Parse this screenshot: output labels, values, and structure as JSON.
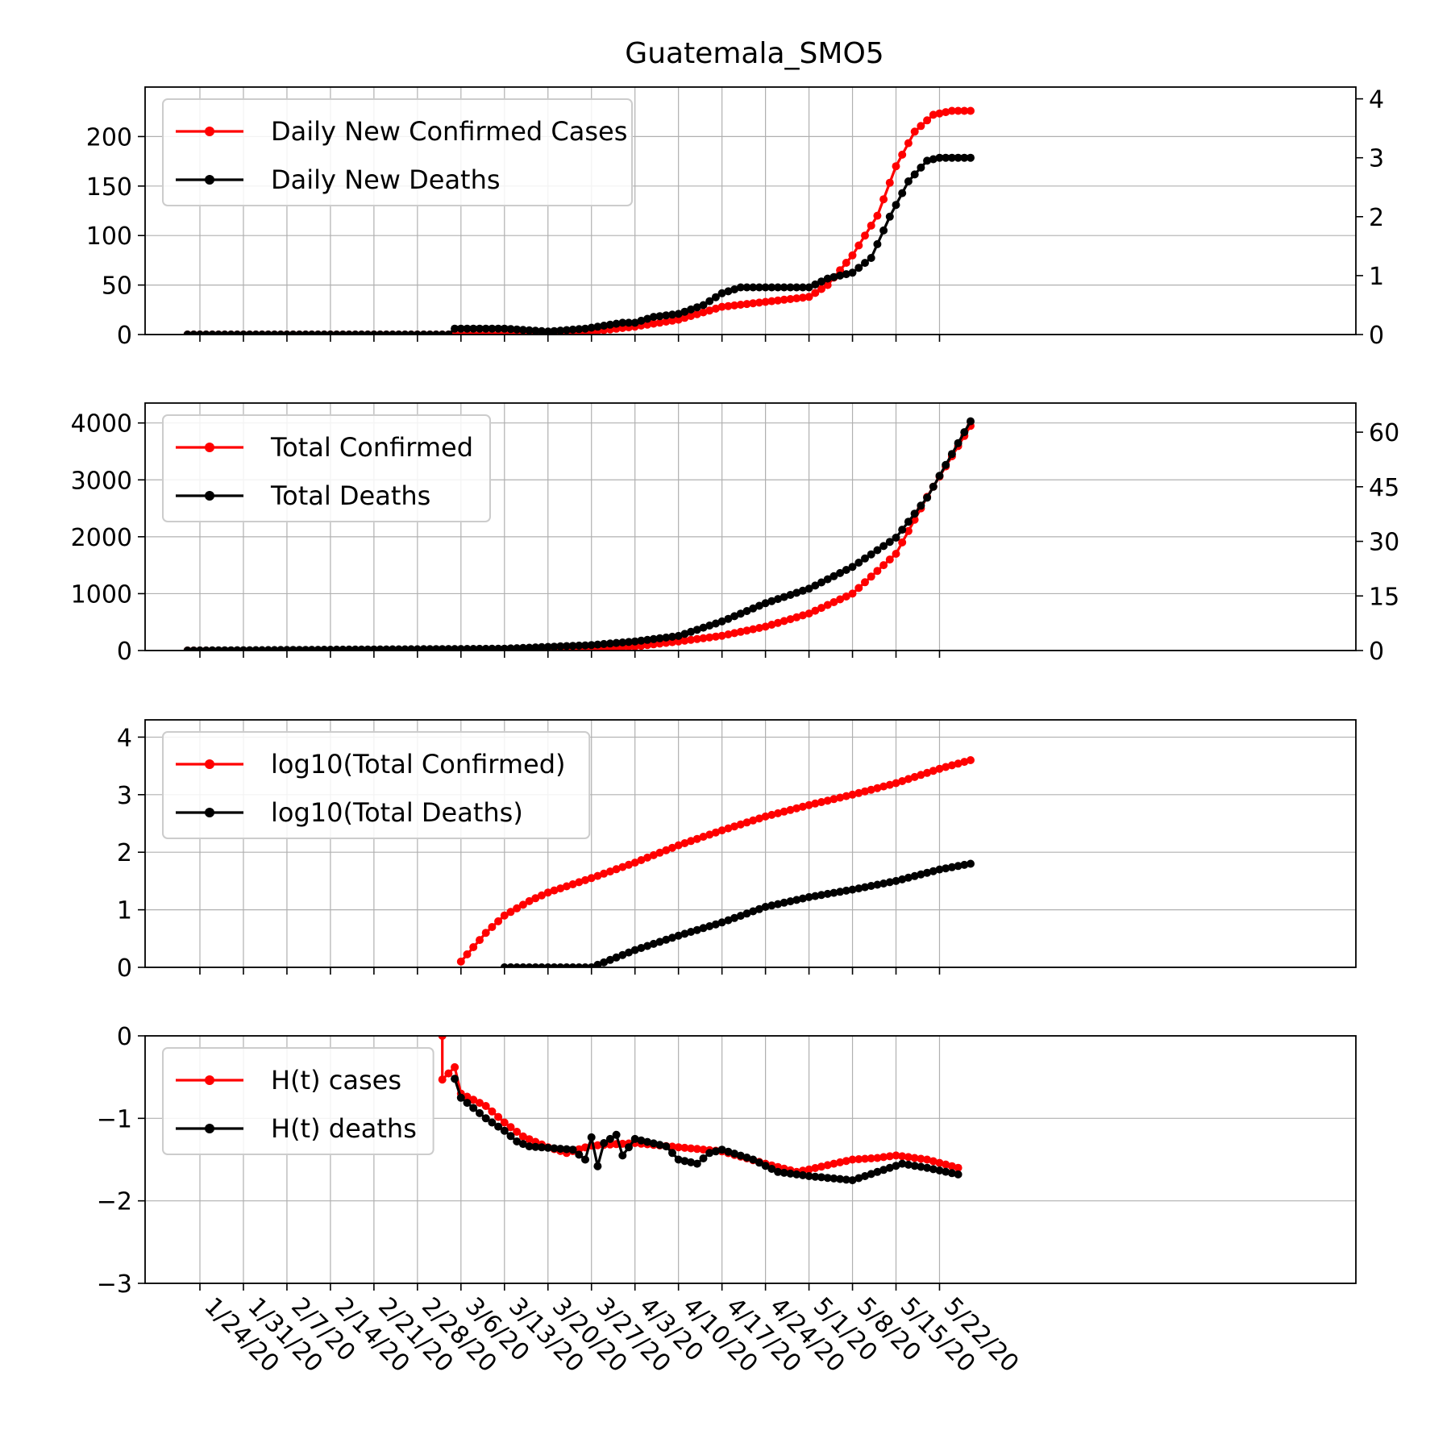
{
  "title": "Guatemala_SMO5",
  "x_ticks": [
    "1/24/20",
    "1/31/20",
    "2/7/20",
    "2/14/20",
    "2/21/20",
    "2/28/20",
    "3/6/20",
    "3/13/20",
    "3/20/20",
    "3/27/20",
    "4/3/20",
    "4/10/20",
    "4/17/20",
    "4/24/20",
    "5/1/20",
    "5/8/20",
    "5/15/20",
    "5/22/20"
  ],
  "chart_data": [
    {
      "type": "line",
      "panel": "daily",
      "x": {
        "start": "1/22/20",
        "end": "5/27/20",
        "unit": "day"
      },
      "left_axis": {
        "ylim": [
          0,
          250
        ],
        "ticks": [
          0,
          50,
          100,
          150,
          200
        ]
      },
      "right_axis": {
        "ylim": [
          0,
          4.2
        ],
        "ticks": [
          0,
          1,
          2,
          3,
          4
        ]
      },
      "grid": true,
      "legend_position": "top-left",
      "series": [
        {
          "name": "Daily New Confirmed Cases",
          "color": "#ff0000",
          "axis": "left",
          "points": [
            [
              "1/22/20",
              0
            ],
            [
              "3/13/20",
              0
            ],
            [
              "3/20/20",
              2
            ],
            [
              "3/27/20",
              3
            ],
            [
              "4/3/20",
              8
            ],
            [
              "4/10/20",
              15
            ],
            [
              "4/17/20",
              28
            ],
            [
              "4/24/20",
              33
            ],
            [
              "5/1/20",
              38
            ],
            [
              "5/4/20",
              50
            ],
            [
              "5/8/20",
              80
            ],
            [
              "5/12/20",
              120
            ],
            [
              "5/15/20",
              170
            ],
            [
              "5/18/20",
              205
            ],
            [
              "5/21/20",
              222
            ],
            [
              "5/24/20",
              226
            ],
            [
              "5/27/20",
              226
            ]
          ]
        },
        {
          "name": "Daily New Deaths",
          "color": "#000000",
          "axis": "right",
          "points": [
            [
              "1/22/20",
              0
            ],
            [
              "3/4/20",
              0
            ],
            [
              "3/5/20",
              0.1
            ],
            [
              "3/13/20",
              0.1
            ],
            [
              "3/20/20",
              0.05
            ],
            [
              "3/26/20",
              0.1
            ],
            [
              "4/1/20",
              0.2
            ],
            [
              "4/3/20",
              0.2
            ],
            [
              "4/6/20",
              0.3
            ],
            [
              "4/10/20",
              0.35
            ],
            [
              "4/14/20",
              0.5
            ],
            [
              "4/17/20",
              0.7
            ],
            [
              "4/20/20",
              0.8
            ],
            [
              "4/24/20",
              0.8
            ],
            [
              "5/1/20",
              0.8
            ],
            [
              "5/4/20",
              0.95
            ],
            [
              "5/8/20",
              1.05
            ],
            [
              "5/11/20",
              1.3
            ],
            [
              "5/14/20",
              2.0
            ],
            [
              "5/17/20",
              2.6
            ],
            [
              "5/20/20",
              2.95
            ],
            [
              "5/22/20",
              3.0
            ],
            [
              "5/27/20",
              3.0
            ]
          ]
        }
      ]
    },
    {
      "type": "line",
      "panel": "total",
      "x": {
        "start": "1/22/20",
        "end": "5/27/20",
        "unit": "day"
      },
      "left_axis": {
        "ylim": [
          0,
          4350
        ],
        "ticks": [
          0,
          1000,
          2000,
          3000,
          4000
        ]
      },
      "right_axis": {
        "ylim": [
          0,
          68
        ],
        "ticks": [
          0,
          15,
          30,
          45,
          60
        ]
      },
      "grid": true,
      "legend_position": "top-left",
      "series": [
        {
          "name": "Total Confirmed",
          "color": "#ff0000",
          "axis": "left",
          "points": [
            [
              "1/22/20",
              0
            ],
            [
              "3/13/20",
              0
            ],
            [
              "3/20/20",
              20
            ],
            [
              "3/27/20",
              40
            ],
            [
              "4/3/20",
              70
            ],
            [
              "4/10/20",
              160
            ],
            [
              "4/17/20",
              260
            ],
            [
              "4/24/20",
              420
            ],
            [
              "5/1/20",
              650
            ],
            [
              "5/8/20",
              1000
            ],
            [
              "5/15/20",
              1700
            ],
            [
              "5/20/20",
              2700
            ],
            [
              "5/27/20",
              3950
            ]
          ]
        },
        {
          "name": "Total Deaths",
          "color": "#000000",
          "axis": "right",
          "points": [
            [
              "1/22/20",
              0
            ],
            [
              "3/13/20",
              0.5
            ],
            [
              "3/20/20",
              1
            ],
            [
              "3/27/20",
              1.5
            ],
            [
              "4/3/20",
              2.5
            ],
            [
              "4/10/20",
              4
            ],
            [
              "4/17/20",
              8
            ],
            [
              "4/24/20",
              13
            ],
            [
              "5/1/20",
              17
            ],
            [
              "5/8/20",
              23
            ],
            [
              "5/15/20",
              31
            ],
            [
              "5/20/20",
              42
            ],
            [
              "5/27/20",
              63
            ]
          ]
        }
      ]
    },
    {
      "type": "line",
      "panel": "log",
      "x": {
        "start": "1/22/20",
        "end": "5/27/20",
        "unit": "day"
      },
      "left_axis": {
        "ylim": [
          0,
          4.3
        ],
        "ticks": [
          0,
          1,
          2,
          3,
          4
        ]
      },
      "grid": true,
      "legend_position": "top-left",
      "series": [
        {
          "name": "log10(Total Confirmed)",
          "color": "#ff0000",
          "axis": "left",
          "points": [
            [
              "3/6/20",
              0.1
            ],
            [
              "3/10/20",
              0.6
            ],
            [
              "3/13/20",
              0.9
            ],
            [
              "3/17/20",
              1.15
            ],
            [
              "3/20/20",
              1.3
            ],
            [
              "3/27/20",
              1.55
            ],
            [
              "4/3/20",
              1.82
            ],
            [
              "4/10/20",
              2.12
            ],
            [
              "4/17/20",
              2.38
            ],
            [
              "4/24/20",
              2.62
            ],
            [
              "5/1/20",
              2.82
            ],
            [
              "5/8/20",
              3.0
            ],
            [
              "5/15/20",
              3.2
            ],
            [
              "5/22/20",
              3.45
            ],
            [
              "5/27/20",
              3.6
            ]
          ]
        },
        {
          "name": "log10(Total Deaths)",
          "color": "#000000",
          "axis": "left",
          "points": [
            [
              "3/13/20",
              0
            ],
            [
              "3/27/20",
              0
            ],
            [
              "4/3/20",
              0.3
            ],
            [
              "4/10/20",
              0.55
            ],
            [
              "4/17/20",
              0.78
            ],
            [
              "4/24/20",
              1.05
            ],
            [
              "5/1/20",
              1.22
            ],
            [
              "5/8/20",
              1.35
            ],
            [
              "5/15/20",
              1.5
            ],
            [
              "5/22/20",
              1.7
            ],
            [
              "5/27/20",
              1.8
            ]
          ]
        }
      ]
    },
    {
      "type": "line",
      "panel": "H",
      "x": {
        "start": "1/22/20",
        "end": "5/27/20",
        "unit": "day"
      },
      "left_axis": {
        "ylim": [
          -3,
          0
        ],
        "ticks": [
          -3,
          -2,
          -1,
          0
        ]
      },
      "grid": true,
      "legend_position": "top-left",
      "series": [
        {
          "name": "H(t) cases",
          "color": "#ff0000",
          "axis": "left",
          "points": [
            [
              "3/3/20",
              0
            ],
            [
              "3/3/20",
              -0.53
            ],
            [
              "3/5/20",
              -0.38
            ],
            [
              "3/6/20",
              -0.7
            ],
            [
              "3/10/20",
              -0.85
            ],
            [
              "3/13/20",
              -1.05
            ],
            [
              "3/16/20",
              -1.22
            ],
            [
              "3/20/20",
              -1.35
            ],
            [
              "3/23/20",
              -1.42
            ],
            [
              "3/27/20",
              -1.33
            ],
            [
              "4/3/20",
              -1.3
            ],
            [
              "4/10/20",
              -1.35
            ],
            [
              "4/17/20",
              -1.4
            ],
            [
              "4/24/20",
              -1.55
            ],
            [
              "4/29/20",
              -1.65
            ],
            [
              "5/1/20",
              -1.62
            ],
            [
              "5/5/20",
              -1.55
            ],
            [
              "5/8/20",
              -1.5
            ],
            [
              "5/12/20",
              -1.48
            ],
            [
              "5/15/20",
              -1.45
            ],
            [
              "5/20/20",
              -1.5
            ],
            [
              "5/25/20",
              -1.6
            ]
          ]
        },
        {
          "name": "H(t) deaths",
          "color": "#000000",
          "axis": "left",
          "points": [
            [
              "3/5/20",
              -0.52
            ],
            [
              "3/6/20",
              -0.75
            ],
            [
              "3/10/20",
              -1.0
            ],
            [
              "3/13/20",
              -1.15
            ],
            [
              "3/15/20",
              -1.28
            ],
            [
              "3/17/20",
              -1.34
            ],
            [
              "3/24/20",
              -1.38
            ],
            [
              "3/26/20",
              -1.5
            ],
            [
              "3/27/20",
              -1.23
            ],
            [
              "3/28/20",
              -1.58
            ],
            [
              "3/29/20",
              -1.3
            ],
            [
              "3/31/20",
              -1.2
            ],
            [
              "4/1/20",
              -1.45
            ],
            [
              "4/3/20",
              -1.25
            ],
            [
              "4/8/20",
              -1.34
            ],
            [
              "4/10/20",
              -1.5
            ],
            [
              "4/13/20",
              -1.55
            ],
            [
              "4/15/20",
              -1.42
            ],
            [
              "4/17/20",
              -1.38
            ],
            [
              "4/22/20",
              -1.5
            ],
            [
              "4/26/20",
              -1.65
            ],
            [
              "5/1/20",
              -1.7
            ],
            [
              "5/8/20",
              -1.75
            ],
            [
              "5/12/20",
              -1.65
            ],
            [
              "5/16/20",
              -1.55
            ],
            [
              "5/20/20",
              -1.6
            ],
            [
              "5/25/20",
              -1.68
            ]
          ]
        }
      ]
    }
  ]
}
